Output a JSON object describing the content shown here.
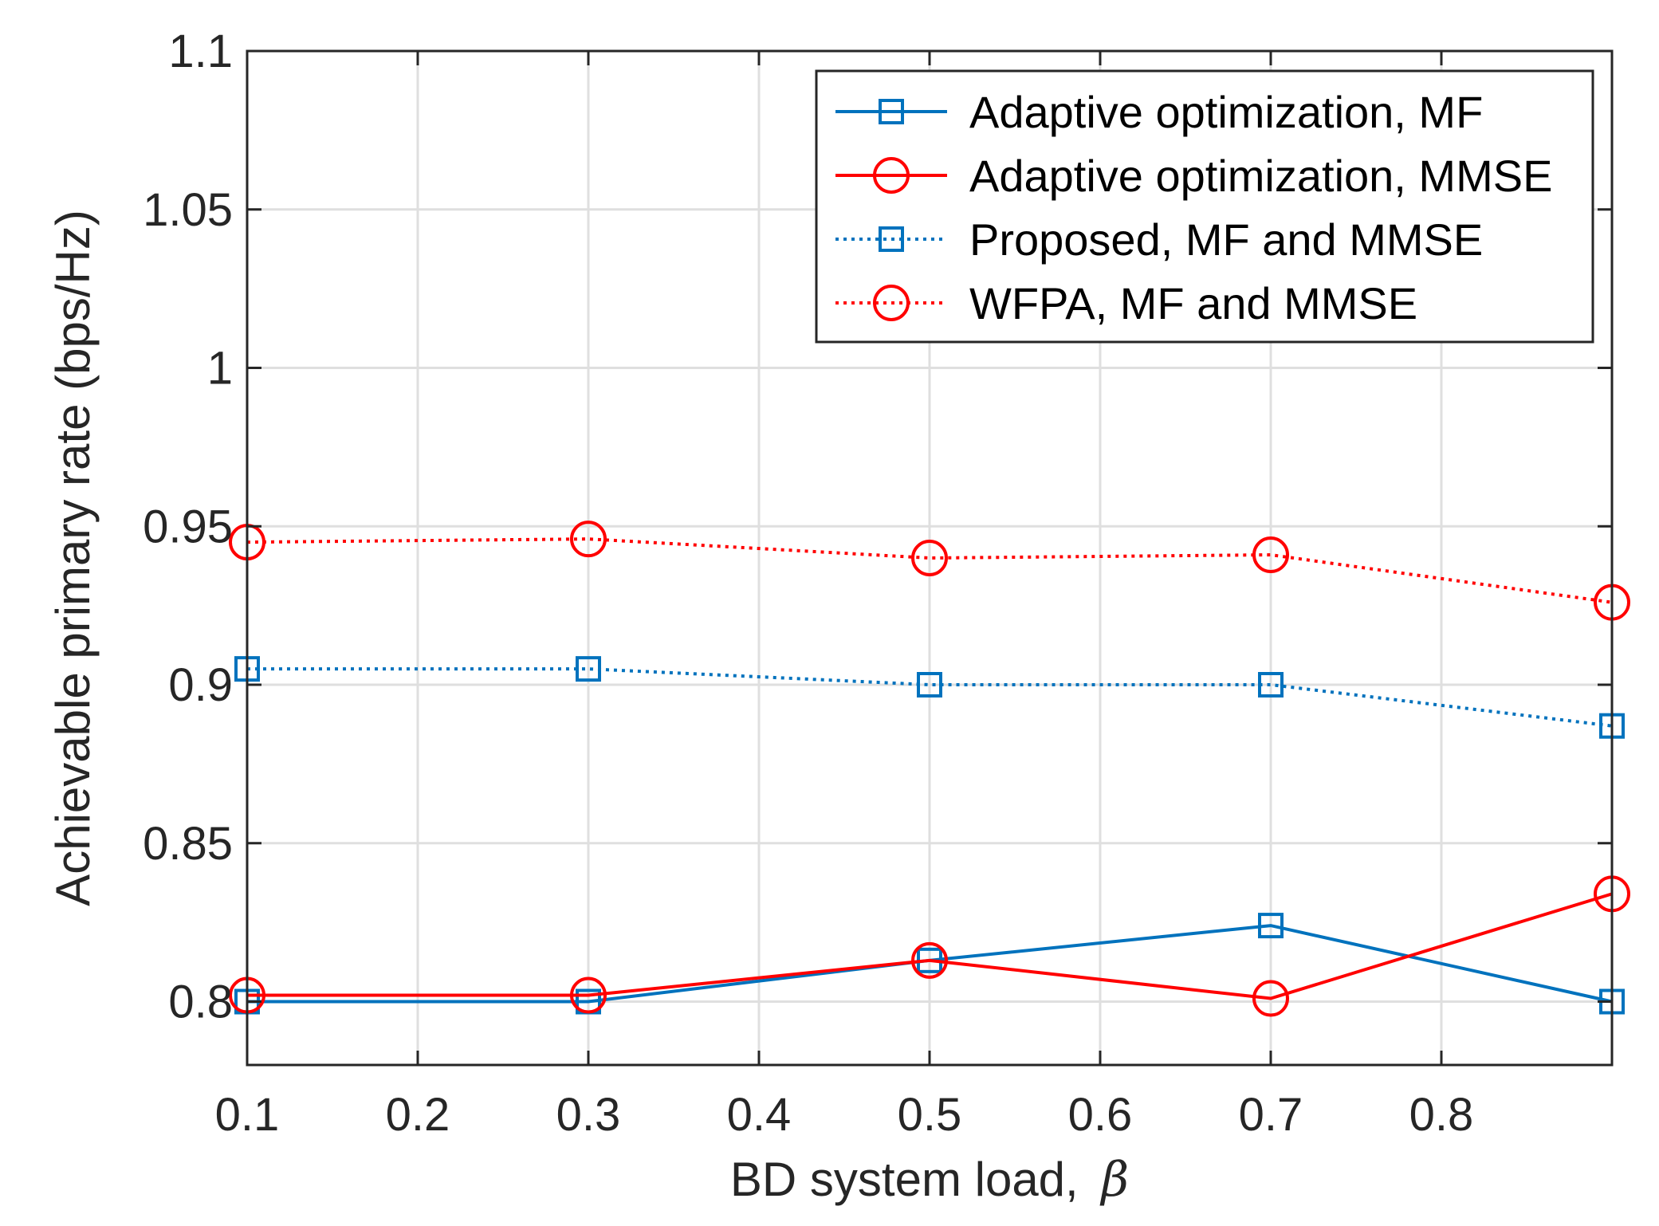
{
  "chart_data": {
    "type": "line",
    "xlabel": "BD system load,",
    "xlabel_symbol": "β",
    "ylabel": "Achievable primary rate (bps/Hz)",
    "xlim": [
      0.1,
      0.9
    ],
    "ylim": [
      0.78,
      1.1
    ],
    "x_ticks": [
      0.1,
      0.2,
      0.3,
      0.4,
      0.5,
      0.6,
      0.7,
      0.8
    ],
    "x_tick_labels": [
      "0.1",
      "0.2",
      "0.3",
      "0.4",
      "0.5",
      "0.6",
      "0.7",
      "0.8"
    ],
    "y_ticks": [
      0.8,
      0.85,
      0.9,
      0.95,
      1.0,
      1.05,
      1.1
    ],
    "y_tick_labels": [
      "0.8",
      "0.85",
      "0.9",
      "0.95",
      "1",
      "1.05",
      "1.1"
    ],
    "grid": true,
    "legend_position": "top-right",
    "x": [
      0.1,
      0.3,
      0.5,
      0.7,
      0.9
    ],
    "series": [
      {
        "name": "Adaptive optimization, MF",
        "color": "#0072BD",
        "line_style": "solid",
        "marker": "square",
        "values": [
          0.8,
          0.8,
          0.813,
          0.824,
          0.8
        ]
      },
      {
        "name": "Adaptive optimization, MMSE",
        "color": "#FF0000",
        "line_style": "solid",
        "marker": "circle",
        "values": [
          0.802,
          0.802,
          0.813,
          0.801,
          0.834
        ]
      },
      {
        "name": "Proposed, MF and MMSE",
        "color": "#0072BD",
        "line_style": "dotted",
        "marker": "square",
        "values": [
          0.905,
          0.905,
          0.9,
          0.9,
          0.887
        ]
      },
      {
        "name": "WFPA, MF and MMSE",
        "color": "#FF0000",
        "line_style": "dotted",
        "marker": "circle",
        "values": [
          0.945,
          0.946,
          0.94,
          0.941,
          0.926
        ]
      }
    ]
  }
}
